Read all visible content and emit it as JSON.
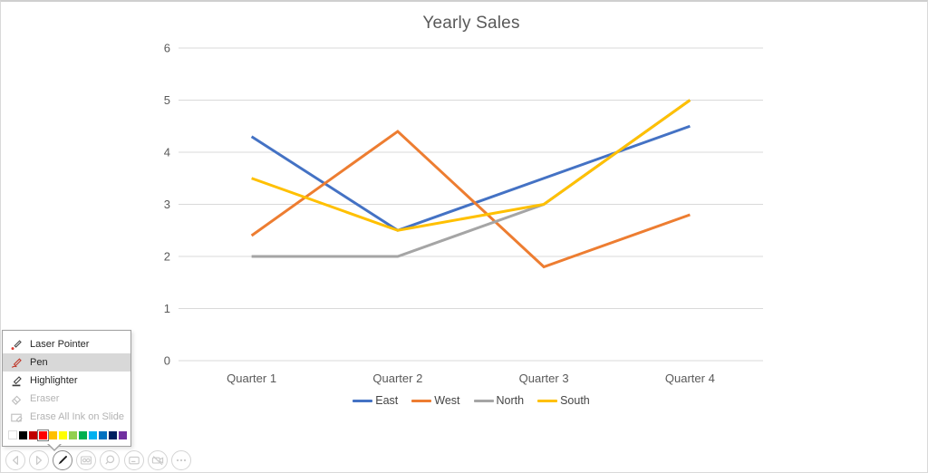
{
  "chart_data": {
    "type": "line",
    "title": "Yearly Sales",
    "categories": [
      "Quarter 1",
      "Quarter 2",
      "Quarter 3",
      "Quarter 4"
    ],
    "series": [
      {
        "name": "East",
        "color": "#4472C4",
        "values": [
          4.3,
          2.5,
          3.5,
          4.5
        ]
      },
      {
        "name": "West",
        "color": "#ED7D31",
        "values": [
          2.4,
          4.4,
          1.8,
          2.8
        ]
      },
      {
        "name": "North",
        "color": "#A5A5A5",
        "values": [
          2,
          2,
          3,
          5
        ]
      },
      {
        "name": "South",
        "color": "#FFC000",
        "values": [
          3.5,
          2.5,
          3,
          5
        ]
      }
    ],
    "ylim": [
      0,
      6
    ],
    "yticks": [
      0,
      1,
      2,
      3,
      4,
      5,
      6
    ],
    "grid": true,
    "gridline_color": "#D9D9D9",
    "legend_position": "bottom",
    "title_color": "#595959",
    "axis_label_color": "#595959",
    "line_width": 3
  },
  "pen_menu": {
    "items": [
      {
        "label": "Laser Pointer",
        "icon": "laser-pointer-icon",
        "state": "normal"
      },
      {
        "label": "Pen",
        "icon": "pen-icon",
        "state": "selected"
      },
      {
        "label": "Highlighter",
        "icon": "highlighter-icon",
        "state": "normal"
      },
      {
        "label": "Eraser",
        "icon": "eraser-icon",
        "state": "disabled"
      },
      {
        "label": "Erase All Ink on Slide",
        "icon": "erase-all-ink-icon",
        "state": "disabled"
      }
    ],
    "ink_colors": [
      "#FFFFFF",
      "#000000",
      "#C00000",
      "#FF0000",
      "#FFC000",
      "#FFFF00",
      "#92D050",
      "#00B050",
      "#00B0F0",
      "#0070C0",
      "#002060",
      "#7030A0"
    ],
    "selected_color_index": 3
  },
  "toolbar": {
    "buttons": [
      {
        "name": "previous-slide",
        "icon": "chevron-left-icon",
        "active": false
      },
      {
        "name": "next-slide",
        "icon": "chevron-right-icon",
        "active": false
      },
      {
        "name": "pen-tools",
        "icon": "pen-icon",
        "active": true
      },
      {
        "name": "see-all-slides",
        "icon": "slides-icon",
        "active": false
      },
      {
        "name": "zoom",
        "icon": "magnifier-icon",
        "active": false
      },
      {
        "name": "captions",
        "icon": "captions-icon",
        "active": false
      },
      {
        "name": "camera",
        "icon": "camera-off-icon",
        "active": false
      },
      {
        "name": "more-options",
        "icon": "ellipsis-icon",
        "active": false
      }
    ]
  }
}
